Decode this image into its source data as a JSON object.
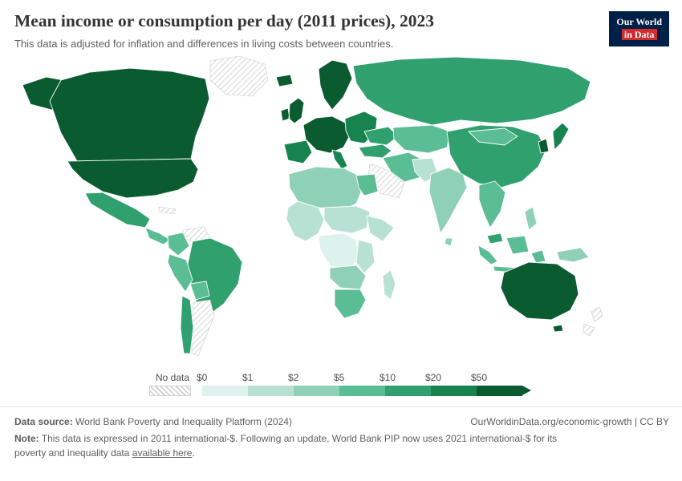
{
  "header": {
    "title": "Mean income or consumption per day (2011 prices), 2023",
    "subtitle": "This data is adjusted for inflation and differences in living costs between countries.",
    "logo": {
      "line1": "Our World",
      "line2": "in Data"
    }
  },
  "brand": {
    "navy": "#002147",
    "red": "#d42b2f"
  },
  "chart_data": {
    "type": "choropleth_map",
    "title": "Mean income or consumption per day (2011 prices), 2023",
    "year": "2023",
    "legend": {
      "no_data_label": "No data",
      "tick_labels": [
        "$0",
        "$1",
        "$2",
        "$5",
        "$10",
        "$20",
        "$50"
      ],
      "bin_ranges": [
        "$0–$1",
        "$1–$2",
        "$2–$5",
        "$5–$10",
        "$10–$20",
        "$20–$50",
        "$50+"
      ],
      "colors": [
        "#ddf2ec",
        "#b7e2d3",
        "#8ed1b6",
        "#5abd94",
        "#2fa06e",
        "#17834f",
        "#0a5c30"
      ],
      "no_data_pattern": "diagonal-hatch"
    },
    "regions": {
      "united-states": {
        "label": "United States",
        "bin": 6
      },
      "canada": {
        "label": "Canada",
        "bin": 6
      },
      "greenland": {
        "label": "Greenland",
        "bin": null
      },
      "mexico": {
        "label": "Mexico",
        "bin": 4
      },
      "central-america": {
        "label": "Central America",
        "bin": 3
      },
      "cuba": {
        "label": "Cuba",
        "bin": null
      },
      "venezuela": {
        "label": "Venezuela",
        "bin": null
      },
      "colombia": {
        "label": "Colombia",
        "bin": 3
      },
      "peru": {
        "label": "Peru",
        "bin": 3
      },
      "bolivia": {
        "label": "Bolivia",
        "bin": 3
      },
      "brazil": {
        "label": "Brazil",
        "bin": 4
      },
      "chile": {
        "label": "Chile",
        "bin": 4
      },
      "argentina": {
        "label": "Argentina",
        "bin": null
      },
      "iceland": {
        "label": "Iceland",
        "bin": 6
      },
      "united-kingdom": {
        "label": "United Kingdom & Ireland",
        "bin": 6
      },
      "scandinavia": {
        "label": "Scandinavia",
        "bin": 6
      },
      "western-europe": {
        "label": "Western Europe",
        "bin": 6
      },
      "iberia": {
        "label": "Spain & Portugal",
        "bin": 5
      },
      "italy": {
        "label": "Italy",
        "bin": 5
      },
      "eastern-europe": {
        "label": "Eastern Europe",
        "bin": 5
      },
      "ukraine": {
        "label": "Ukraine",
        "bin": 4
      },
      "russia": {
        "label": "Russia",
        "bin": 4
      },
      "central-asia": {
        "label": "Central Asia",
        "bin": 3
      },
      "turkey": {
        "label": "Turkey",
        "bin": 4
      },
      "middle-east": {
        "label": "Iran & Iraq",
        "bin": 3
      },
      "saudi-arabia": {
        "label": "Saudi Arabia",
        "bin": null
      },
      "north-africa": {
        "label": "North Africa",
        "bin": 2
      },
      "egypt": {
        "label": "Egypt",
        "bin": 3
      },
      "west-africa": {
        "label": "West Africa",
        "bin": 1
      },
      "sahel": {
        "label": "Sahel & Sudan",
        "bin": 1
      },
      "horn-of-africa": {
        "label": "Horn of Africa",
        "bin": 1
      },
      "central-africa": {
        "label": "Central Africa",
        "bin": 0
      },
      "east-africa": {
        "label": "East Africa",
        "bin": 1
      },
      "southern-africa": {
        "label": "Southern Africa",
        "bin": 2
      },
      "south-africa": {
        "label": "South Africa",
        "bin": 3
      },
      "madagascar": {
        "label": "Madagascar",
        "bin": 1
      },
      "pakistan-afghanistan": {
        "label": "Pakistan & Afghanistan",
        "bin": 1
      },
      "india": {
        "label": "India",
        "bin": 2
      },
      "sri-lanka": {
        "label": "Sri Lanka",
        "bin": 2
      },
      "china": {
        "label": "China",
        "bin": 4
      },
      "mongolia": {
        "label": "Mongolia",
        "bin": 3
      },
      "south-korea": {
        "label": "South Korea",
        "bin": 6
      },
      "japan": {
        "label": "Japan",
        "bin": 5
      },
      "southeast-asia": {
        "label": "Mainland Southeast Asia",
        "bin": 3
      },
      "malaysia": {
        "label": "Malaysia",
        "bin": 4
      },
      "borneo": {
        "label": "Borneo",
        "bin": 3
      },
      "philippines": {
        "label": "Philippines",
        "bin": 2
      },
      "indonesia": {
        "label": "Indonesia",
        "bin": 3
      },
      "papua-new-guinea": {
        "label": "Papua New Guinea",
        "bin": 2
      },
      "australia": {
        "label": "Australia",
        "bin": 6
      },
      "new-zealand": {
        "label": "New Zealand",
        "bin": null
      }
    }
  },
  "footer": {
    "datasource_label": "Data source:",
    "datasource_text": " World Bank Poverty and Inequality Platform (2024)",
    "rights": "OurWorldinData.org/economic-growth | CC BY",
    "note_label": "Note:",
    "note_text": " This data is expressed in 2011 international-$. Following an update, World Bank PIP now uses 2021 international-$ for its poverty and inequality data ",
    "note_link": "available here",
    "note_suffix": "."
  }
}
